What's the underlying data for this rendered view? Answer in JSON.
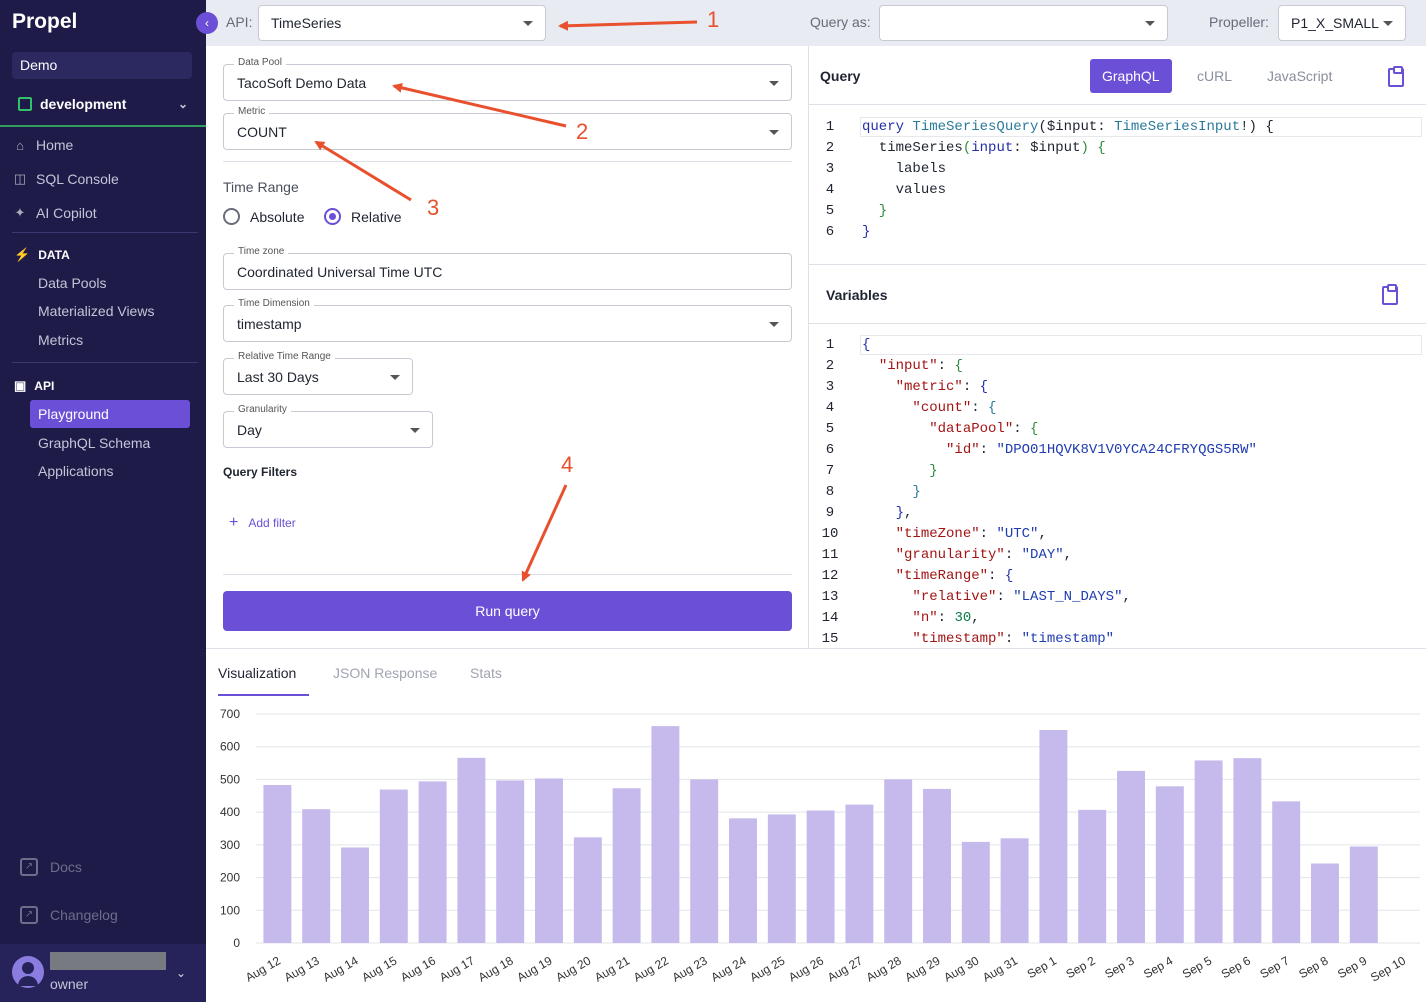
{
  "sidebar": {
    "logo": "Propel",
    "environment_group": "Demo",
    "environment": "development",
    "nav": [
      {
        "label": "Home",
        "icon": "home-icon"
      },
      {
        "label": "SQL Console",
        "icon": "database-icon"
      },
      {
        "label": "AI Copilot",
        "icon": "sparkle-icon"
      }
    ],
    "data_section": "DATA",
    "data_items": [
      "Data Pools",
      "Materialized Views",
      "Metrics"
    ],
    "api_section": "API",
    "api_items": [
      "Playground",
      "GraphQL Schema",
      "Applications"
    ],
    "docs": "Docs",
    "changelog": "Changelog",
    "user_role": "owner"
  },
  "topbar": {
    "api_label": "API:",
    "api_value": "TimeSeries",
    "query_as_label": "Query as:",
    "query_as_value": "",
    "propeller_label": "Propeller:",
    "propeller_value": "P1_X_SMALL"
  },
  "form": {
    "data_pool_label": "Data Pool",
    "data_pool_value": "TacoSoft Demo Data",
    "metric_label": "Metric",
    "metric_value": "COUNT",
    "time_range_label": "Time Range",
    "radio_absolute": "Absolute",
    "radio_relative": "Relative",
    "timezone_label": "Time zone",
    "timezone_value": "Coordinated Universal Time UTC",
    "time_dimension_label": "Time Dimension",
    "time_dimension_value": "timestamp",
    "relative_range_label": "Relative Time Range",
    "relative_range_value": "Last 30 Days",
    "granularity_label": "Granularity",
    "granularity_value": "Day",
    "query_filters": "Query Filters",
    "add_filter": "Add filter",
    "run_query": "Run query"
  },
  "annotations": [
    "1",
    "2",
    "3",
    "4"
  ],
  "query_pane": {
    "title": "Query",
    "tabs": [
      "GraphQL",
      "cURL",
      "JavaScript"
    ],
    "line_numbers": [
      "1",
      "2",
      "3",
      "4",
      "5",
      "6"
    ]
  },
  "variables_pane": {
    "title": "Variables",
    "line_numbers": [
      "1",
      "2",
      "3",
      "4",
      "5",
      "6",
      "7",
      "8",
      "9",
      "10",
      "11",
      "12",
      "13",
      "14",
      "15"
    ]
  },
  "code": {
    "q_query": "query",
    "q_name": "TimeSeriesQuery",
    "q_var": "$input",
    "q_type": "TimeSeriesInput",
    "q_field": "timeSeries",
    "q_arg": "input",
    "q_labels": "labels",
    "q_values": "values",
    "v_input": "\"input\"",
    "v_metric": "\"metric\"",
    "v_count": "\"count\"",
    "v_datapool": "\"dataPool\"",
    "v_id": "\"id\"",
    "v_id_val": "\"DPO01HQVK8V1V0YCA24CFRYQGS5RW\"",
    "v_timezone": "\"timeZone\"",
    "v_timezone_val": "\"UTC\"",
    "v_granularity": "\"granularity\"",
    "v_granularity_val": "\"DAY\"",
    "v_timerange": "\"timeRange\"",
    "v_relative": "\"relative\"",
    "v_relative_val": "\"LAST_N_DAYS\"",
    "v_n": "\"n\"",
    "v_n_val": "30",
    "v_timestamp": "\"timestamp\"",
    "v_timestamp_val": "\"timestamp\""
  },
  "bottom_tabs": [
    "Visualization",
    "JSON Response",
    "Stats"
  ],
  "colors": {
    "accent": "#6b4fd6",
    "bar": "#c6b9ec",
    "arrow": "#e8502e",
    "sidebar": "#1e1b48"
  },
  "chart_data": {
    "type": "bar",
    "categories": [
      "Aug 12",
      "Aug 13",
      "Aug 14",
      "Aug 15",
      "Aug 16",
      "Aug 17",
      "Aug 18",
      "Aug 19",
      "Aug 20",
      "Aug 21",
      "Aug 22",
      "Aug 23",
      "Aug 24",
      "Aug 25",
      "Aug 26",
      "Aug 27",
      "Aug 28",
      "Aug 29",
      "Aug 30",
      "Aug 31",
      "Sep 1",
      "Sep 2",
      "Sep 3",
      "Sep 4",
      "Sep 5",
      "Sep 6",
      "Sep 7",
      "Sep 8",
      "Sep 9",
      "Sep 10"
    ],
    "values": [
      483,
      409,
      292,
      469,
      494,
      566,
      497,
      503,
      323,
      473,
      663,
      500,
      381,
      393,
      405,
      423,
      500,
      471,
      309,
      320,
      651,
      407,
      526,
      479,
      558,
      565,
      433,
      243,
      295,
      0
    ],
    "yticks": [
      "0",
      "100",
      "200",
      "300",
      "400",
      "500",
      "600",
      "700"
    ],
    "ylim": [
      0,
      700
    ],
    "grid": true
  }
}
